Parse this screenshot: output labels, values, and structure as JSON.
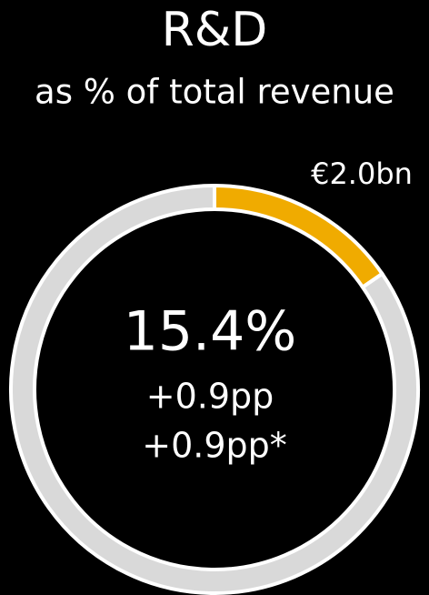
{
  "chart_data": {
    "type": "donut",
    "title": "R&D",
    "subtitle": "as % of total revenue",
    "values": [
      15.4,
      84.6
    ],
    "value_labels": [
      "15.4%",
      null
    ],
    "colors": [
      "#f0ab00",
      "#d9d9d9"
    ],
    "annotations": [
      "€2.0bn",
      "+0.9pp",
      "+0.9pp*"
    ]
  }
}
